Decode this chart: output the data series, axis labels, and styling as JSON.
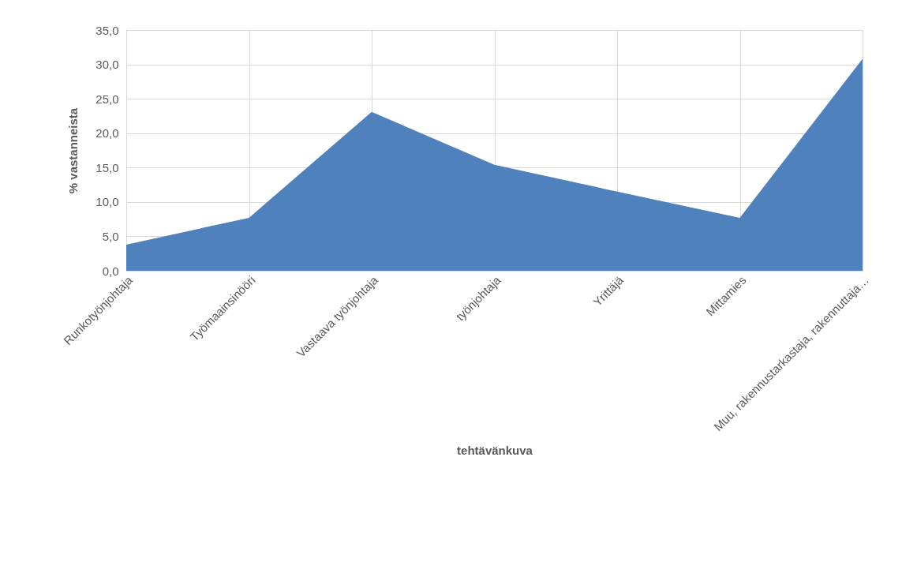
{
  "chart_data": {
    "type": "area",
    "xlabel": "tehtävänkuva",
    "ylabel": "% vastanneista",
    "categories": [
      "Runkotyönjohtaja",
      "Työmaainsinööri",
      "Vastaava työnjohtaja",
      "työnjohtaja",
      "Yrittäjä",
      "Mittamies",
      "Muu, rakennustarkastaja, rakennuttaja…"
    ],
    "series": [
      {
        "color": "#4f81bd",
        "values": [
          3.8,
          7.7,
          23.1,
          15.4,
          11.5,
          7.7,
          30.8
        ]
      }
    ],
    "ylim": [
      0,
      35
    ],
    "yticks": [
      {
        "value": 0,
        "label": "0,0"
      },
      {
        "value": 5,
        "label": "5,0"
      },
      {
        "value": 10,
        "label": "10,0"
      },
      {
        "value": 15,
        "label": "15,0"
      },
      {
        "value": 20,
        "label": "20,0"
      },
      {
        "value": 25,
        "label": "25,0"
      },
      {
        "value": 30,
        "label": "30,0"
      },
      {
        "value": 35,
        "label": "35,0"
      }
    ],
    "grid": true
  }
}
